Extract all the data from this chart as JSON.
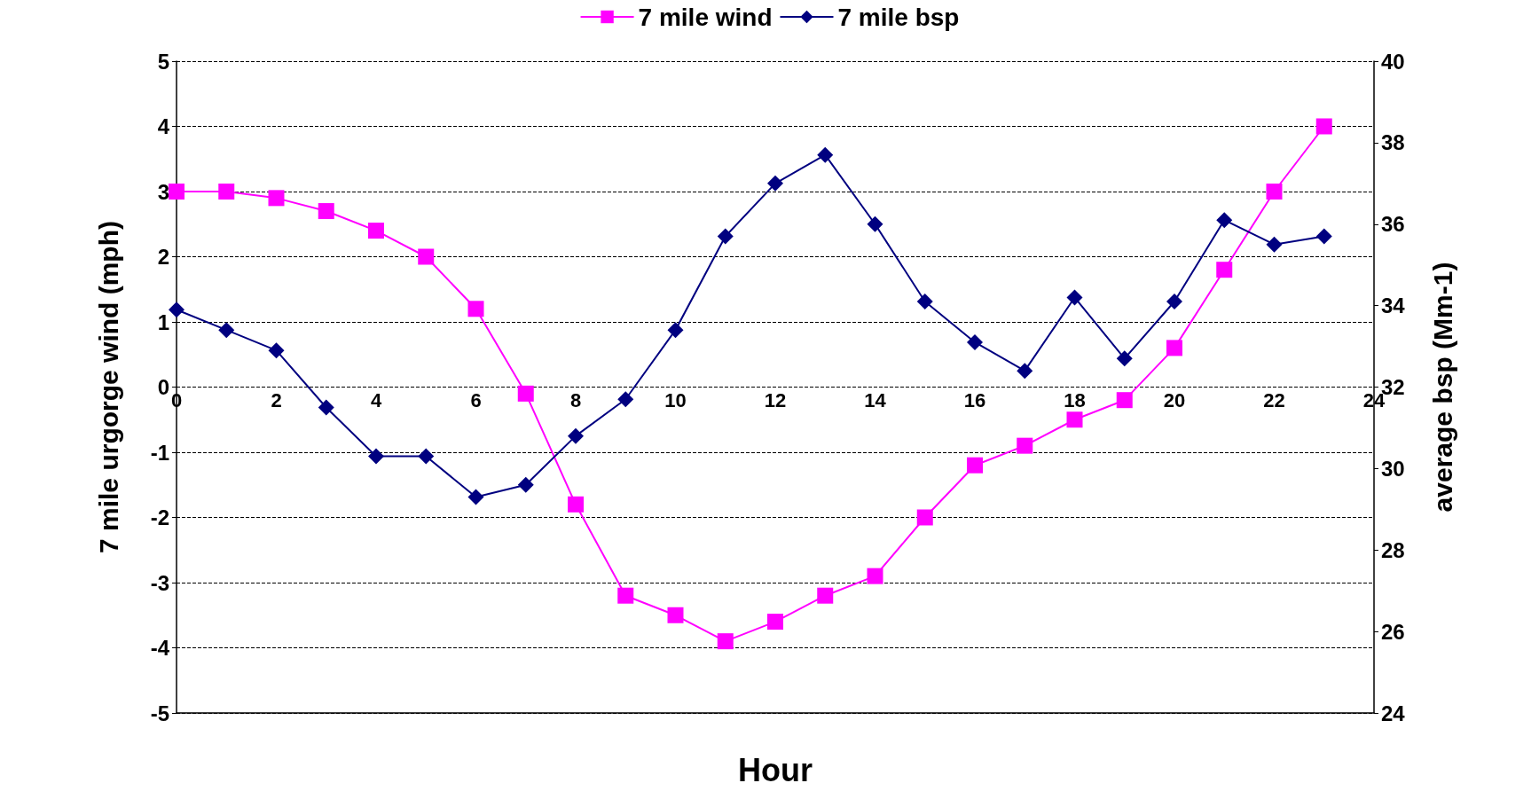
{
  "chart_data": {
    "type": "line",
    "xlabel": "Hour",
    "ylabel": "7 mile urgorge wind (mph)",
    "y2label": "average bsp (Mm-1)",
    "x": [
      0,
      1,
      2,
      3,
      4,
      5,
      6,
      7,
      8,
      9,
      10,
      11,
      12,
      13,
      14,
      15,
      16,
      17,
      18,
      19,
      20,
      21,
      22,
      23
    ],
    "series": [
      {
        "name": "7 mile wind",
        "color": "#ff00ff",
        "marker": "square",
        "values": [
          3.0,
          3.0,
          2.9,
          2.7,
          2.4,
          2.0,
          1.2,
          -0.1,
          -1.8,
          -3.2,
          -3.5,
          -3.9,
          -3.6,
          -3.2,
          -2.9,
          -2.0,
          -1.2,
          -0.9,
          -0.5,
          -0.2,
          0.6,
          1.8,
          3.0,
          4.0
        ]
      },
      {
        "name": "7 mile bsp",
        "color": "#000080",
        "marker": "diamond",
        "axis": "y2",
        "values": [
          33.9,
          33.4,
          32.9,
          31.5,
          30.3,
          30.3,
          29.3,
          29.6,
          30.8,
          31.7,
          33.4,
          35.7,
          37.0,
          37.7,
          36.0,
          34.1,
          33.1,
          32.4,
          34.2,
          32.7,
          34.1,
          36.1,
          35.5,
          35.7
        ]
      }
    ],
    "xlim": [
      0,
      24
    ],
    "xticks": [
      0,
      2,
      4,
      6,
      8,
      10,
      12,
      14,
      16,
      18,
      20,
      22,
      24
    ],
    "ylim": [
      -5,
      5
    ],
    "yticks": [
      -5,
      -4,
      -3,
      -2,
      -1,
      0,
      1,
      2,
      3,
      4,
      5
    ],
    "y2lim": [
      24,
      40
    ],
    "y2ticks": [
      24,
      26,
      28,
      30,
      32,
      34,
      36,
      38,
      40
    ],
    "grid": "y",
    "legend": "top",
    "line_style": "solid"
  }
}
